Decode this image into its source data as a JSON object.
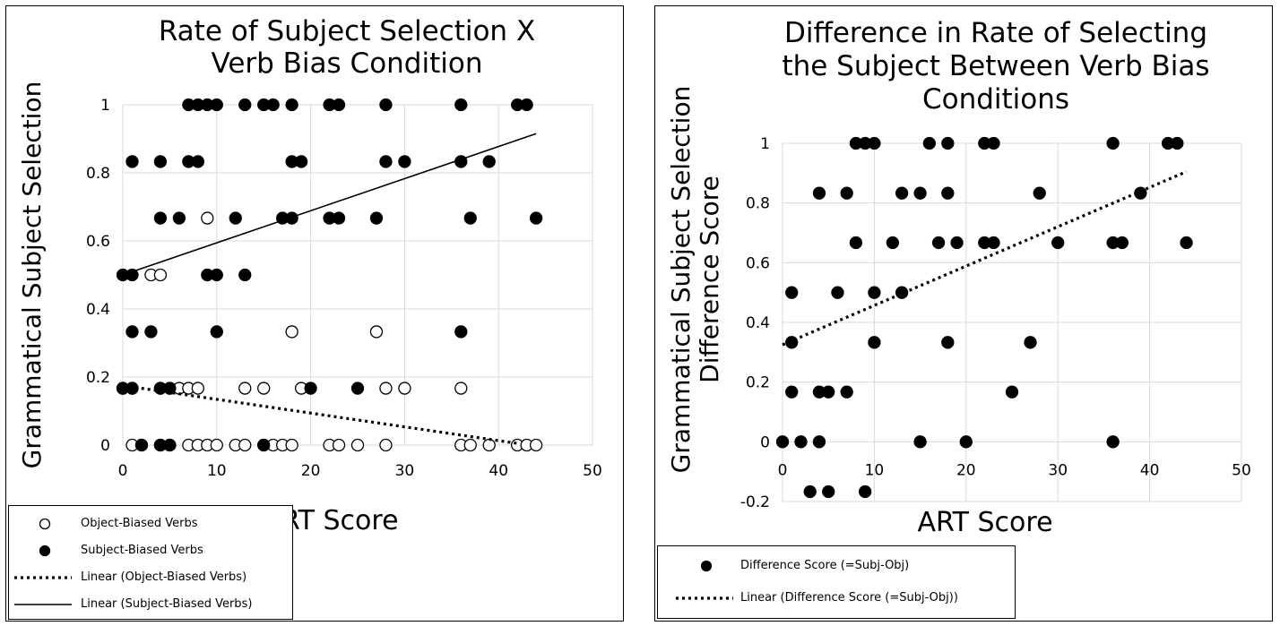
{
  "chart_data": [
    {
      "type": "scatter",
      "title": [
        "Rate of Subject Selection X",
        "Verb Bias Condition"
      ],
      "xlabel": "ART Score",
      "ylabel": "Grammatical Subject Selection",
      "xlim": [
        0,
        50
      ],
      "ylim": [
        0,
        1
      ],
      "xticks": [
        0,
        10,
        20,
        30,
        40,
        50
      ],
      "yticks": [
        0,
        0.2,
        0.4,
        0.6,
        0.8,
        1
      ],
      "ytick_labels": [
        "0",
        "0.2",
        "0.4",
        "0.6",
        "0.8",
        "1"
      ],
      "grid": true,
      "legend_position": "bottom-left",
      "series": [
        {
          "name": "Object-Biased Verbs",
          "marker": "open-circle",
          "points": [
            [
              1,
              0
            ],
            [
              2,
              0
            ],
            [
              4,
              0
            ],
            [
              5,
              0
            ],
            [
              7,
              0
            ],
            [
              8,
              0
            ],
            [
              9,
              0
            ],
            [
              10,
              0
            ],
            [
              12,
              0
            ],
            [
              13,
              0
            ],
            [
              15,
              0
            ],
            [
              16,
              0
            ],
            [
              17,
              0
            ],
            [
              18,
              0
            ],
            [
              22,
              0
            ],
            [
              23,
              0
            ],
            [
              25,
              0
            ],
            [
              28,
              0
            ],
            [
              36,
              0
            ],
            [
              37,
              0
            ],
            [
              39,
              0
            ],
            [
              42,
              0
            ],
            [
              43,
              0
            ],
            [
              44,
              0
            ],
            [
              0,
              0.167
            ],
            [
              1,
              0.167
            ],
            [
              4,
              0.167
            ],
            [
              5,
              0.167
            ],
            [
              6,
              0.167
            ],
            [
              7,
              0.167
            ],
            [
              8,
              0.167
            ],
            [
              13,
              0.167
            ],
            [
              15,
              0.167
            ],
            [
              19,
              0.167
            ],
            [
              28,
              0.167
            ],
            [
              30,
              0.167
            ],
            [
              36,
              0.167
            ],
            [
              18,
              0.333
            ],
            [
              27,
              0.333
            ],
            [
              3,
              0.5
            ],
            [
              4,
              0.5
            ],
            [
              9,
              0.667
            ]
          ]
        },
        {
          "name": "Subject-Biased Verbs",
          "marker": "filled-circle",
          "points": [
            [
              7,
              1
            ],
            [
              8,
              1
            ],
            [
              9,
              1
            ],
            [
              10,
              1
            ],
            [
              13,
              1
            ],
            [
              15,
              1
            ],
            [
              16,
              1
            ],
            [
              18,
              1
            ],
            [
              22,
              1
            ],
            [
              23,
              1
            ],
            [
              28,
              1
            ],
            [
              36,
              1
            ],
            [
              42,
              1
            ],
            [
              43,
              1
            ],
            [
              1,
              0.833
            ],
            [
              4,
              0.833
            ],
            [
              7,
              0.833
            ],
            [
              8,
              0.833
            ],
            [
              18,
              0.833
            ],
            [
              19,
              0.833
            ],
            [
              28,
              0.833
            ],
            [
              30,
              0.833
            ],
            [
              36,
              0.833
            ],
            [
              39,
              0.833
            ],
            [
              4,
              0.667
            ],
            [
              6,
              0.667
            ],
            [
              12,
              0.667
            ],
            [
              17,
              0.667
            ],
            [
              18,
              0.667
            ],
            [
              22,
              0.667
            ],
            [
              23,
              0.667
            ],
            [
              27,
              0.667
            ],
            [
              37,
              0.667
            ],
            [
              44,
              0.667
            ],
            [
              0,
              0.5
            ],
            [
              1,
              0.5
            ],
            [
              9,
              0.5
            ],
            [
              10,
              0.5
            ],
            [
              13,
              0.5
            ],
            [
              1,
              0.333
            ],
            [
              3,
              0.333
            ],
            [
              10,
              0.333
            ],
            [
              36,
              0.333
            ],
            [
              0,
              0.167
            ],
            [
              1,
              0.167
            ],
            [
              4,
              0.167
            ],
            [
              5,
              0.167
            ],
            [
              20,
              0.167
            ],
            [
              25,
              0.167
            ],
            [
              2,
              0
            ],
            [
              4,
              0
            ],
            [
              5,
              0
            ],
            [
              15,
              0
            ]
          ]
        },
        {
          "name": "Linear (Object-Biased Verbs)",
          "style": "dotted-line",
          "line": [
            [
              0,
              0.175
            ],
            [
              42,
              0.005
            ]
          ]
        },
        {
          "name": "Linear (Subject-Biased Verbs)",
          "style": "solid-line",
          "line": [
            [
              0,
              0.5
            ],
            [
              44,
              0.915
            ]
          ]
        }
      ]
    },
    {
      "type": "scatter",
      "title": [
        "Difference in Rate of Selecting",
        "the Subject Between Verb Bias",
        "Conditions"
      ],
      "xlabel": "ART Score",
      "ylabel": [
        "Grammatical Subject Selection",
        "Difference Score"
      ],
      "xlim": [
        0,
        50
      ],
      "ylim": [
        -0.2,
        1
      ],
      "xticks": [
        0,
        10,
        20,
        30,
        40,
        50
      ],
      "yticks": [
        -0.2,
        0,
        0.2,
        0.4,
        0.6,
        0.8,
        1
      ],
      "ytick_labels": [
        "-0.2",
        "0",
        "0.2",
        "0.4",
        "0.6",
        "0.8",
        "1"
      ],
      "grid": true,
      "legend_position": "bottom-left",
      "series": [
        {
          "name": "Difference Score (=Subj-Obj)",
          "marker": "filled-circle",
          "points": [
            [
              8,
              1
            ],
            [
              9,
              1
            ],
            [
              10,
              1
            ],
            [
              16,
              1
            ],
            [
              18,
              1
            ],
            [
              22,
              1
            ],
            [
              23,
              1
            ],
            [
              36,
              1
            ],
            [
              42,
              1
            ],
            [
              43,
              1
            ],
            [
              4,
              0.833
            ],
            [
              7,
              0.833
            ],
            [
              13,
              0.833
            ],
            [
              15,
              0.833
            ],
            [
              18,
              0.833
            ],
            [
              28,
              0.833
            ],
            [
              39,
              0.833
            ],
            [
              8,
              0.667
            ],
            [
              12,
              0.667
            ],
            [
              17,
              0.667
            ],
            [
              19,
              0.667
            ],
            [
              22,
              0.667
            ],
            [
              23,
              0.667
            ],
            [
              30,
              0.667
            ],
            [
              36,
              0.667
            ],
            [
              37,
              0.667
            ],
            [
              44,
              0.667
            ],
            [
              1,
              0.5
            ],
            [
              6,
              0.5
            ],
            [
              10,
              0.5
            ],
            [
              13,
              0.5
            ],
            [
              1,
              0.333
            ],
            [
              10,
              0.333
            ],
            [
              18,
              0.333
            ],
            [
              27,
              0.333
            ],
            [
              1,
              0.167
            ],
            [
              4,
              0.167
            ],
            [
              5,
              0.167
            ],
            [
              7,
              0.167
            ],
            [
              25,
              0.167
            ],
            [
              0,
              0
            ],
            [
              2,
              0
            ],
            [
              4,
              0
            ],
            [
              15,
              0
            ],
            [
              20,
              0
            ],
            [
              36,
              0
            ],
            [
              3,
              -0.167
            ],
            [
              5,
              -0.167
            ],
            [
              9,
              -0.167
            ]
          ]
        },
        {
          "name": "Linear (Difference Score (=Subj-Obj))",
          "style": "dotted-line",
          "line": [
            [
              0,
              0.325
            ],
            [
              44,
              0.905
            ]
          ]
        }
      ]
    }
  ]
}
